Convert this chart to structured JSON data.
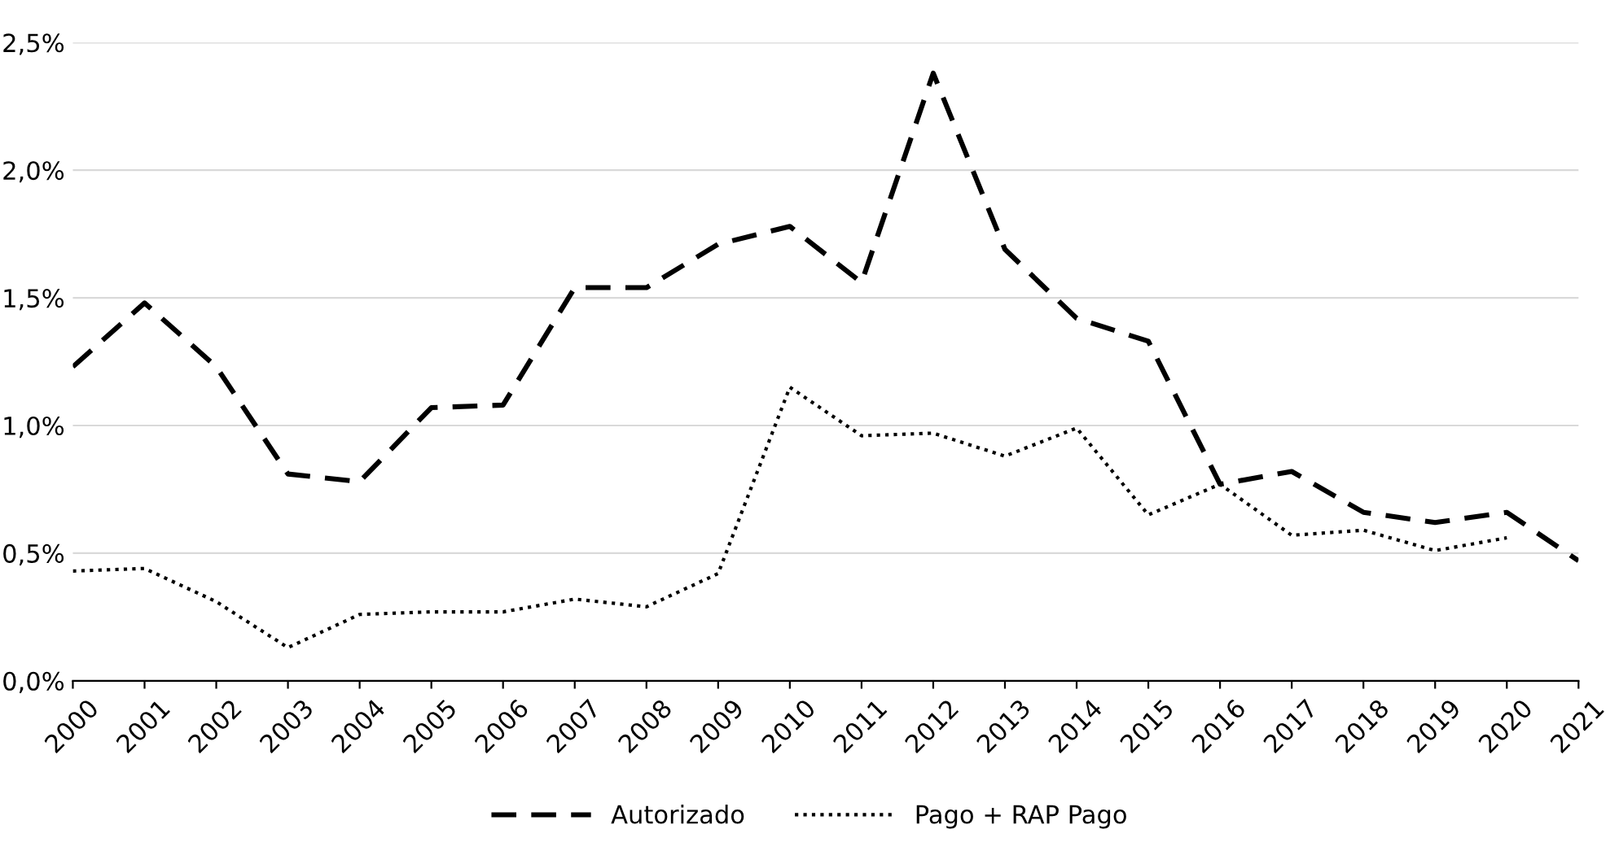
{
  "chart_data": {
    "type": "line",
    "categories": [
      "2000",
      "2001",
      "2002",
      "2003",
      "2004",
      "2005",
      "2006",
      "2007",
      "2008",
      "2009",
      "2010",
      "2011",
      "2012",
      "2013",
      "2014",
      "2015",
      "2016",
      "2017",
      "2018",
      "2019",
      "2020",
      "2021"
    ],
    "series": [
      {
        "name": "Autorizado",
        "color": "#000000",
        "line_style": "dashed",
        "values": [
          1.23,
          1.48,
          1.23,
          0.81,
          0.78,
          1.07,
          1.08,
          1.54,
          1.54,
          1.71,
          1.78,
          1.56,
          2.38,
          1.69,
          1.42,
          1.33,
          0.77,
          0.82,
          0.66,
          0.62,
          0.66,
          0.47
        ]
      },
      {
        "name": "Pago + RAP Pago",
        "color": "#000000",
        "line_style": "dotted",
        "values": [
          0.43,
          0.44,
          0.31,
          0.13,
          0.26,
          0.27,
          0.27,
          0.32,
          0.29,
          0.42,
          1.15,
          0.96,
          0.97,
          0.88,
          0.99,
          0.65,
          0.77,
          0.57,
          0.59,
          0.51,
          0.56,
          null
        ]
      }
    ],
    "ylim": [
      0,
      2.5
    ],
    "yticks": [
      {
        "value": 0,
        "label": "0,0%"
      },
      {
        "value": 0.5,
        "label": "0,5%"
      },
      {
        "value": 1.0,
        "label": "1,0%"
      },
      {
        "value": 1.5,
        "label": "1,5%"
      },
      {
        "value": 2.0,
        "label": "2,0%"
      },
      {
        "value": 2.5,
        "label": "2,5%"
      }
    ],
    "grid": "y",
    "legend": "bottom",
    "marker": "none"
  }
}
